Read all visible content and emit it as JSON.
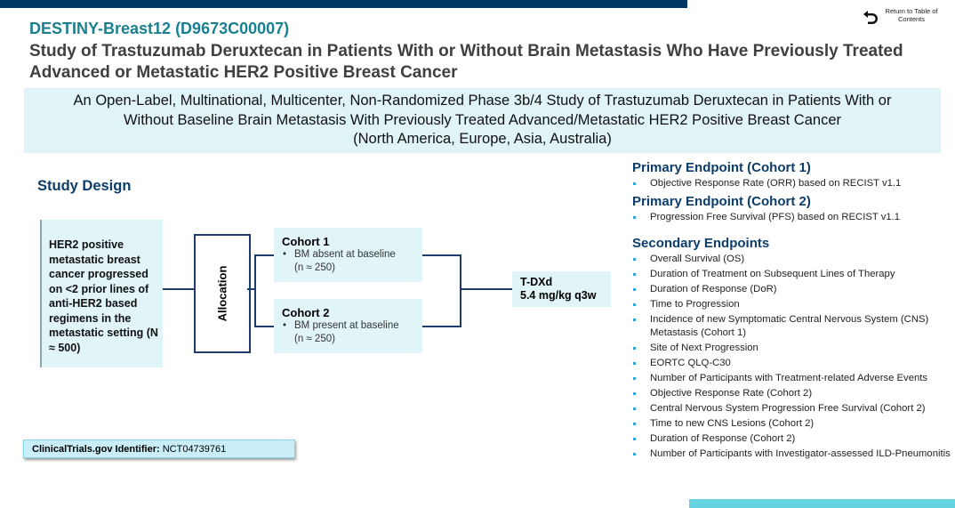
{
  "nav": {
    "return_label": "Return to Table of Contents",
    "return_icon": "return-arrow-icon"
  },
  "title": "DESTINY-Breast12 (D9673C00007)",
  "subtitle": "Study of Trastuzumab Deruxtecan in Patients With or Without Brain Metastasis Who Have Previously Treated Advanced or Metastatic HER2 Positive Breast Cancer",
  "banner": {
    "line1": "An Open-Label, Multinational, Multicenter, Non-Randomized Phase 3b/4 Study of Trastuzumab Deruxtecan in Patients With or",
    "line2": "Without Baseline Brain Metastasis With Previously Treated Advanced/Metastatic HER2 Positive Breast Cancer",
    "line3": "(North America, Europe, Asia, Australia)"
  },
  "design": {
    "heading": "Study Design",
    "population": "HER2 positive metastatic breast cancer progressed on <2 prior lines of anti-HER2 based regimens in the metastatic setting (N ≈ 500)",
    "allocation": "Allocation",
    "cohort1": {
      "title": "Cohort 1",
      "bullet": "BM absent at baseline",
      "n": "(n ≈ 250)"
    },
    "cohort2": {
      "title": "Cohort 2",
      "bullet": "BM present at baseline",
      "n": "(n ≈ 250)"
    },
    "treatment": {
      "name": "T-DXd",
      "dose": "5.4 mg/kg q3w"
    }
  },
  "endpoints": {
    "primary1": {
      "heading": "Primary Endpoint (Cohort 1)",
      "items": [
        "Objective Response Rate (ORR) based on RECIST v1.1"
      ]
    },
    "primary2": {
      "heading": "Primary Endpoint (Cohort 2)",
      "items": [
        "Progression Free Survival (PFS) based on RECIST v1.1"
      ]
    },
    "secondary": {
      "heading": "Secondary Endpoints",
      "items": [
        "Overall Survival (OS)",
        "Duration of Treatment on Subsequent Lines of Therapy",
        "Duration of Response (DoR)",
        "Time to Progression",
        "Incidence of new Symptomatic Central Nervous System (CNS) Metastasis (Cohort 1)",
        "Site of Next Progression",
        "EORTC QLQ-C30",
        "Number of Participants with Treatment-related Adverse Events",
        "Objective Response Rate (Cohort 2)",
        "Central Nervous System Progression Free Survival (Cohort 2)",
        "Time to new CNS Lesions (Cohort 2)",
        "Duration of Response (Cohort 2)",
        "Number of Participants with Investigator-assessed ILD-Pneumonitis"
      ]
    }
  },
  "identifier": {
    "label": "ClinicalTrials.gov Identifier:",
    "value": "NCT04739761"
  }
}
